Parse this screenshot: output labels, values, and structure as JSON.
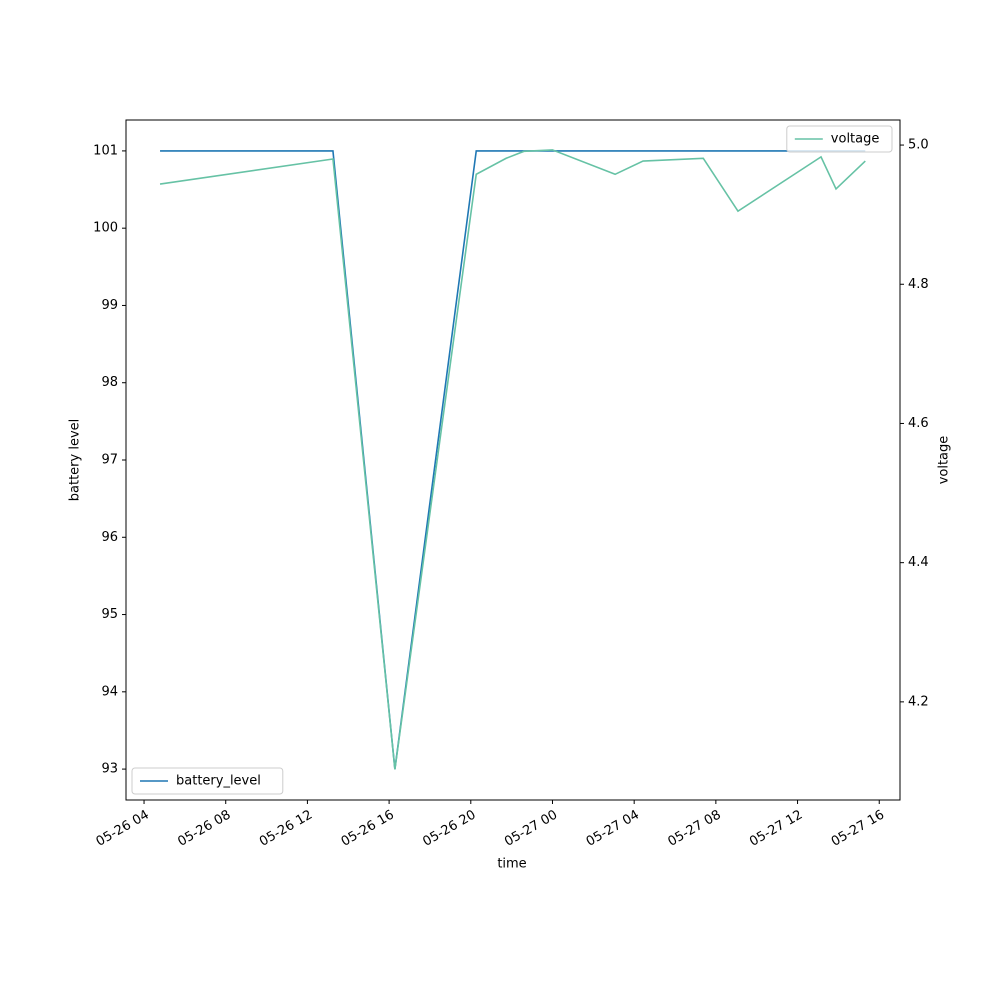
{
  "chart_data": {
    "type": "line",
    "xlabel": "time",
    "ylabel": "battery level",
    "y2label": "voltage",
    "x": [
      "05-26 04:47",
      "05-26 13:15",
      "05-26 16:17",
      "05-26 20:16",
      "05-26 21:44",
      "05-26 22:36",
      "05-27 00:00",
      "05-27 03:04",
      "05-27 04:26",
      "05-27 07:23",
      "05-27 09:05",
      "05-27 13:09",
      "05-27 13:53",
      "05-27 15:19"
    ],
    "series": [
      {
        "name": "battery_level",
        "color": "#1f77b4",
        "legend": "lower left",
        "values": [
          101,
          101,
          93,
          101,
          101,
          101,
          101,
          101,
          101,
          101,
          101,
          101,
          101,
          101
        ]
      },
      {
        "name": "voltage",
        "color": "#66c2a5",
        "axis": "y2",
        "legend": "upper right",
        "values": [
          4.944,
          4.98,
          4.103,
          4.958,
          4.981,
          4.991,
          4.993,
          4.958,
          4.977,
          4.981,
          4.905,
          4.983,
          4.937,
          4.977
        ]
      }
    ],
    "xlim": [
      "05-26 03:07",
      "05-27 17:01"
    ],
    "xticks": [
      {
        "value": "05-26 04:00",
        "label": "05-26 04"
      },
      {
        "value": "05-26 08:00",
        "label": "05-26 08"
      },
      {
        "value": "05-26 12:00",
        "label": "05-26 12"
      },
      {
        "value": "05-26 16:00",
        "label": "05-26 16"
      },
      {
        "value": "05-26 20:00",
        "label": "05-26 20"
      },
      {
        "value": "05-27 00:00",
        "label": "05-27 00"
      },
      {
        "value": "05-27 04:00",
        "label": "05-27 04"
      },
      {
        "value": "05-27 08:00",
        "label": "05-27 08"
      },
      {
        "value": "05-27 12:00",
        "label": "05-27 12"
      },
      {
        "value": "05-27 16:00",
        "label": "05-27 16"
      }
    ],
    "ylim": [
      92.6,
      101.4
    ],
    "yticks": [
      93,
      94,
      95,
      96,
      97,
      98,
      99,
      100,
      101
    ],
    "y2lim": [
      4.059,
      5.036
    ],
    "y2ticks": [
      4.2,
      4.4,
      4.6,
      4.8,
      {
        "value": 5,
        "label": "5.0"
      }
    ]
  }
}
